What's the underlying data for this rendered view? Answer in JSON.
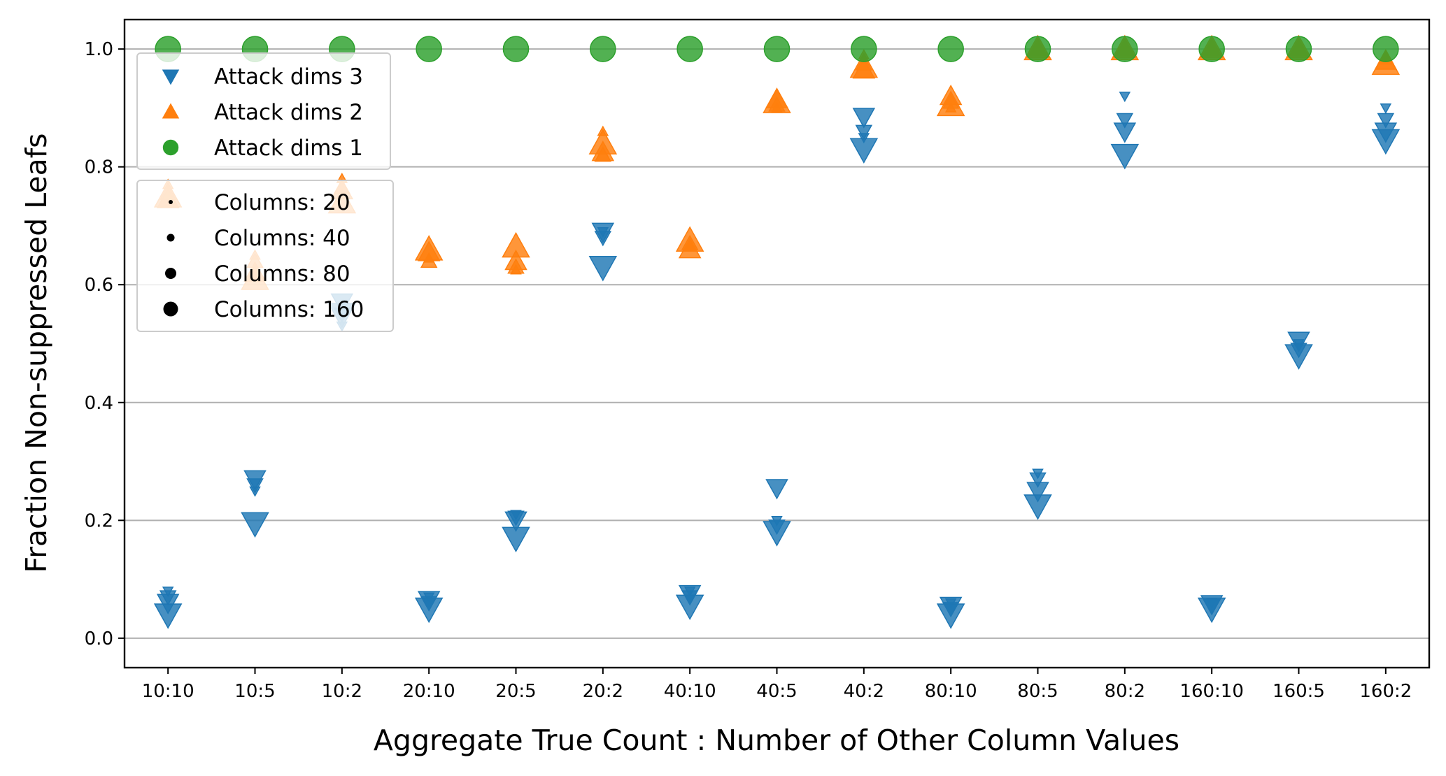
{
  "chart_data": {
    "type": "scatter",
    "title": "",
    "xlabel": "Aggregate True Count : Number of Other Column Values",
    "ylabel": "Fraction Non-suppressed Leafs",
    "categories": [
      "10:10",
      "10:5",
      "10:2",
      "20:10",
      "20:5",
      "20:2",
      "40:10",
      "40:5",
      "40:2",
      "80:10",
      "80:5",
      "80:2",
      "160:10",
      "160:5",
      "160:2"
    ],
    "ylim": [
      -0.05,
      1.05
    ],
    "yticks": [
      "0.0",
      "0.2",
      "0.4",
      "0.6",
      "0.8",
      "1.0"
    ],
    "ytick_values": [
      0.0,
      0.2,
      0.4,
      0.6,
      0.8,
      1.0
    ],
    "grid": "horizontal",
    "series": [
      {
        "name": "Attack dims 3",
        "marker": "triangle-down",
        "color": "#1f77b4",
        "points": [
          {
            "x": "10:10",
            "y": 0.08,
            "columns": 20
          },
          {
            "x": "10:10",
            "y": 0.07,
            "columns": 40
          },
          {
            "x": "10:10",
            "y": 0.06,
            "columns": 80
          },
          {
            "x": "10:10",
            "y": 0.04,
            "columns": 160
          },
          {
            "x": "10:5",
            "y": 0.25,
            "columns": 20
          },
          {
            "x": "10:5",
            "y": 0.26,
            "columns": 40
          },
          {
            "x": "10:5",
            "y": 0.27,
            "columns": 80
          },
          {
            "x": "10:5",
            "y": 0.195,
            "columns": 160
          },
          {
            "x": "10:2",
            "y": 0.53,
            "columns": 20
          },
          {
            "x": "10:2",
            "y": 0.55,
            "columns": 40
          },
          {
            "x": "10:2",
            "y": 0.57,
            "columns": 80
          },
          {
            "x": "10:2",
            "y": 0.55,
            "columns": 160
          },
          {
            "x": "20:10",
            "y": 0.07,
            "columns": 20
          },
          {
            "x": "20:10",
            "y": 0.06,
            "columns": 40
          },
          {
            "x": "20:10",
            "y": 0.065,
            "columns": 80
          },
          {
            "x": "20:10",
            "y": 0.05,
            "columns": 160
          },
          {
            "x": "20:5",
            "y": 0.21,
            "columns": 20
          },
          {
            "x": "20:5",
            "y": 0.205,
            "columns": 40
          },
          {
            "x": "20:5",
            "y": 0.2,
            "columns": 80
          },
          {
            "x": "20:5",
            "y": 0.17,
            "columns": 160
          },
          {
            "x": "20:2",
            "y": 0.69,
            "columns": 20
          },
          {
            "x": "20:2",
            "y": 0.68,
            "columns": 40
          },
          {
            "x": "20:2",
            "y": 0.69,
            "columns": 80
          },
          {
            "x": "20:2",
            "y": 0.63,
            "columns": 160
          },
          {
            "x": "40:10",
            "y": 0.08,
            "columns": 20
          },
          {
            "x": "40:10",
            "y": 0.07,
            "columns": 40
          },
          {
            "x": "40:10",
            "y": 0.075,
            "columns": 80
          },
          {
            "x": "40:10",
            "y": 0.055,
            "columns": 160
          },
          {
            "x": "40:5",
            "y": 0.2,
            "columns": 20
          },
          {
            "x": "40:5",
            "y": 0.19,
            "columns": 40
          },
          {
            "x": "40:5",
            "y": 0.255,
            "columns": 80
          },
          {
            "x": "40:5",
            "y": 0.18,
            "columns": 160
          },
          {
            "x": "40:2",
            "y": 0.85,
            "columns": 20
          },
          {
            "x": "40:2",
            "y": 0.86,
            "columns": 40
          },
          {
            "x": "40:2",
            "y": 0.885,
            "columns": 80
          },
          {
            "x": "40:2",
            "y": 0.83,
            "columns": 160
          },
          {
            "x": "80:10",
            "y": 0.06,
            "columns": 20
          },
          {
            "x": "80:10",
            "y": 0.05,
            "columns": 40
          },
          {
            "x": "80:10",
            "y": 0.055,
            "columns": 80
          },
          {
            "x": "80:10",
            "y": 0.04,
            "columns": 160
          },
          {
            "x": "80:5",
            "y": 0.28,
            "columns": 20
          },
          {
            "x": "80:5",
            "y": 0.27,
            "columns": 40
          },
          {
            "x": "80:5",
            "y": 0.25,
            "columns": 80
          },
          {
            "x": "80:5",
            "y": 0.225,
            "columns": 160
          },
          {
            "x": "80:2",
            "y": 0.92,
            "columns": 20
          },
          {
            "x": "80:2",
            "y": 0.88,
            "columns": 40
          },
          {
            "x": "80:2",
            "y": 0.86,
            "columns": 80
          },
          {
            "x": "80:2",
            "y": 0.82,
            "columns": 160
          },
          {
            "x": "160:10",
            "y": 0.06,
            "columns": 20
          },
          {
            "x": "160:10",
            "y": 0.055,
            "columns": 40
          },
          {
            "x": "160:10",
            "y": 0.058,
            "columns": 80
          },
          {
            "x": "160:10",
            "y": 0.05,
            "columns": 160
          },
          {
            "x": "160:5",
            "y": 0.5,
            "columns": 20
          },
          {
            "x": "160:5",
            "y": 0.49,
            "columns": 40
          },
          {
            "x": "160:5",
            "y": 0.505,
            "columns": 80
          },
          {
            "x": "160:5",
            "y": 0.48,
            "columns": 160
          },
          {
            "x": "160:2",
            "y": 0.9,
            "columns": 20
          },
          {
            "x": "160:2",
            "y": 0.88,
            "columns": 40
          },
          {
            "x": "160:2",
            "y": 0.86,
            "columns": 80
          },
          {
            "x": "160:2",
            "y": 0.845,
            "columns": 160
          }
        ]
      },
      {
        "name": "Attack dims 2",
        "marker": "triangle-up",
        "color": "#ff7f0e",
        "points": [
          {
            "x": "10:10",
            "y": 0.77,
            "columns": 20
          },
          {
            "x": "10:10",
            "y": 0.755,
            "columns": 40
          },
          {
            "x": "10:10",
            "y": 0.745,
            "columns": 80
          },
          {
            "x": "10:10",
            "y": 0.75,
            "columns": 160
          },
          {
            "x": "10:5",
            "y": 0.65,
            "columns": 20
          },
          {
            "x": "10:5",
            "y": 0.64,
            "columns": 40
          },
          {
            "x": "10:5",
            "y": 0.62,
            "columns": 80
          },
          {
            "x": "10:5",
            "y": 0.61,
            "columns": 160
          },
          {
            "x": "10:2",
            "y": 0.78,
            "columns": 20
          },
          {
            "x": "10:2",
            "y": 0.765,
            "columns": 40
          },
          {
            "x": "10:2",
            "y": 0.76,
            "columns": 80
          },
          {
            "x": "10:2",
            "y": 0.74,
            "columns": 160
          },
          {
            "x": "20:10",
            "y": 0.645,
            "columns": 20
          },
          {
            "x": "20:10",
            "y": 0.64,
            "columns": 40
          },
          {
            "x": "20:10",
            "y": 0.655,
            "columns": 80
          },
          {
            "x": "20:10",
            "y": 0.66,
            "columns": 160
          },
          {
            "x": "20:5",
            "y": 0.625,
            "columns": 20
          },
          {
            "x": "20:5",
            "y": 0.63,
            "columns": 40
          },
          {
            "x": "20:5",
            "y": 0.64,
            "columns": 80
          },
          {
            "x": "20:5",
            "y": 0.665,
            "columns": 160
          },
          {
            "x": "20:2",
            "y": 0.86,
            "columns": 20
          },
          {
            "x": "20:2",
            "y": 0.82,
            "columns": 40
          },
          {
            "x": "20:2",
            "y": 0.825,
            "columns": 80
          },
          {
            "x": "20:2",
            "y": 0.84,
            "columns": 160
          },
          {
            "x": "40:10",
            "y": 0.665,
            "columns": 20
          },
          {
            "x": "40:10",
            "y": 0.67,
            "columns": 40
          },
          {
            "x": "40:10",
            "y": 0.66,
            "columns": 80
          },
          {
            "x": "40:10",
            "y": 0.675,
            "columns": 160
          },
          {
            "x": "40:5",
            "y": 0.9,
            "columns": 20
          },
          {
            "x": "40:5",
            "y": 0.905,
            "columns": 40
          },
          {
            "x": "40:5",
            "y": 0.915,
            "columns": 80
          },
          {
            "x": "40:5",
            "y": 0.91,
            "columns": 160
          },
          {
            "x": "40:2",
            "y": 0.99,
            "columns": 20
          },
          {
            "x": "40:2",
            "y": 0.975,
            "columns": 40
          },
          {
            "x": "40:2",
            "y": 0.965,
            "columns": 80
          },
          {
            "x": "40:2",
            "y": 0.97,
            "columns": 160
          },
          {
            "x": "80:10",
            "y": 0.9,
            "columns": 20
          },
          {
            "x": "80:10",
            "y": 0.91,
            "columns": 40
          },
          {
            "x": "80:10",
            "y": 0.92,
            "columns": 80
          },
          {
            "x": "80:10",
            "y": 0.905,
            "columns": 160
          },
          {
            "x": "80:5",
            "y": 1.0,
            "columns": 20
          },
          {
            "x": "80:5",
            "y": 1.0,
            "columns": 40
          },
          {
            "x": "80:5",
            "y": 1.0,
            "columns": 80
          },
          {
            "x": "80:5",
            "y": 1.0,
            "columns": 160
          },
          {
            "x": "80:2",
            "y": 1.0,
            "columns": 20
          },
          {
            "x": "80:2",
            "y": 1.0,
            "columns": 40
          },
          {
            "x": "80:2",
            "y": 1.0,
            "columns": 80
          },
          {
            "x": "80:2",
            "y": 1.0,
            "columns": 160
          },
          {
            "x": "160:10",
            "y": 1.0,
            "columns": 20
          },
          {
            "x": "160:10",
            "y": 1.0,
            "columns": 40
          },
          {
            "x": "160:10",
            "y": 1.0,
            "columns": 80
          },
          {
            "x": "160:10",
            "y": 1.0,
            "columns": 160
          },
          {
            "x": "160:5",
            "y": 1.0,
            "columns": 20
          },
          {
            "x": "160:5",
            "y": 1.0,
            "columns": 40
          },
          {
            "x": "160:5",
            "y": 1.0,
            "columns": 80
          },
          {
            "x": "160:5",
            "y": 1.0,
            "columns": 160
          },
          {
            "x": "160:2",
            "y": 0.99,
            "columns": 20
          },
          {
            "x": "160:2",
            "y": 0.985,
            "columns": 40
          },
          {
            "x": "160:2",
            "y": 0.98,
            "columns": 80
          },
          {
            "x": "160:2",
            "y": 0.975,
            "columns": 160
          }
        ]
      },
      {
        "name": "Attack dims 1",
        "marker": "circle",
        "color": "#2ca02c",
        "points": [
          {
            "x": "10:10",
            "y": 1.0,
            "columns": 160
          },
          {
            "x": "10:5",
            "y": 1.0,
            "columns": 160
          },
          {
            "x": "10:2",
            "y": 1.0,
            "columns": 160
          },
          {
            "x": "20:10",
            "y": 1.0,
            "columns": 160
          },
          {
            "x": "20:5",
            "y": 1.0,
            "columns": 160
          },
          {
            "x": "20:2",
            "y": 1.0,
            "columns": 160
          },
          {
            "x": "40:10",
            "y": 1.0,
            "columns": 160
          },
          {
            "x": "40:5",
            "y": 1.0,
            "columns": 160
          },
          {
            "x": "40:2",
            "y": 1.0,
            "columns": 160
          },
          {
            "x": "80:10",
            "y": 1.0,
            "columns": 160
          },
          {
            "x": "80:5",
            "y": 1.0,
            "columns": 160
          },
          {
            "x": "80:2",
            "y": 1.0,
            "columns": 160
          },
          {
            "x": "160:10",
            "y": 1.0,
            "columns": 160
          },
          {
            "x": "160:5",
            "y": 1.0,
            "columns": 160
          },
          {
            "x": "160:2",
            "y": 1.0,
            "columns": 160
          }
        ]
      }
    ],
    "legend_series": [
      {
        "label": "Attack dims 3",
        "marker": "triangle-down",
        "color": "#1f77b4"
      },
      {
        "label": "Attack dims 2",
        "marker": "triangle-up",
        "color": "#ff7f0e"
      },
      {
        "label": "Attack dims 1",
        "marker": "circle",
        "color": "#2ca02c"
      }
    ],
    "legend_sizes": [
      {
        "label": "Columns: 20",
        "columns": 20
      },
      {
        "label": "Columns: 40",
        "columns": 40
      },
      {
        "label": "Columns: 80",
        "columns": 80
      },
      {
        "label": "Columns: 160",
        "columns": 160
      }
    ],
    "legend_placement": "upper-left"
  }
}
